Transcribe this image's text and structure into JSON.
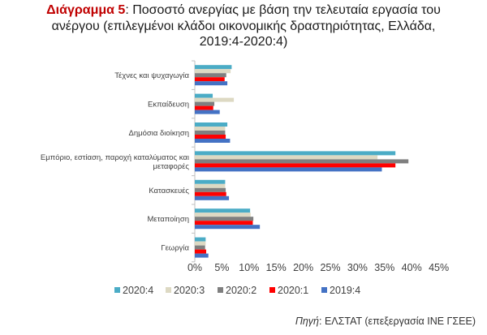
{
  "title": {
    "prefix": "Διάγραμμα 5",
    "line1": ": Ποσοστό ανεργίας με βάση την τελευταία εργασία του",
    "line2": "ανέργου (επιλεγμένοι κλάδοι οικονομικής δραστηριότητας, Ελλάδα,",
    "line3": "2019:4-2020:4)"
  },
  "source": {
    "label": "Πηγή",
    "text": ": ΕΛΣΤΑΤ (επεξεργασία ΙΝΕ ΓΣΕΕ)"
  },
  "colors": {
    "2020:4": "#4bacc6",
    "2020:3": "#ddd9c3",
    "2020:2": "#7f7f7f",
    "2020:1": "#ff0000",
    "2019:4": "#4472c4"
  },
  "chart_data": {
    "type": "bar",
    "orientation": "horizontal",
    "categories": [
      [
        "Τέχνες και ψυχαγωγία"
      ],
      [
        "Εκπαίδευση"
      ],
      [
        "Δημόσια διοίκηση"
      ],
      [
        "Εμπόριο, εστίαση, παροχή καταλύματος και",
        "μεταφορές"
      ],
      [
        "Κατασκευές"
      ],
      [
        "Μεταποίηση"
      ],
      [
        "Γεωργία"
      ]
    ],
    "series": [
      {
        "name": "2020:4",
        "values": [
          6.8,
          3.3,
          6.0,
          37.0,
          5.6,
          10.2,
          2.0
        ]
      },
      {
        "name": "2020:3",
        "values": [
          6.6,
          7.2,
          5.6,
          33.7,
          5.6,
          10.3,
          2.0
        ]
      },
      {
        "name": "2020:2",
        "values": [
          5.8,
          3.6,
          5.6,
          39.4,
          5.7,
          10.8,
          1.9
        ]
      },
      {
        "name": "2020:1",
        "values": [
          5.5,
          3.4,
          5.7,
          37.0,
          5.8,
          10.7,
          2.1
        ]
      },
      {
        "name": "2019:4",
        "values": [
          6.0,
          4.6,
          6.5,
          34.5,
          6.3,
          12.0,
          2.5
        ]
      }
    ],
    "x_ticks": [
      "0%",
      "5%",
      "10%",
      "15%",
      "20%",
      "25%",
      "30%",
      "35%",
      "40%",
      "45%"
    ],
    "xlim": [
      0,
      45
    ],
    "grid": false,
    "legend_position": "bottom"
  }
}
